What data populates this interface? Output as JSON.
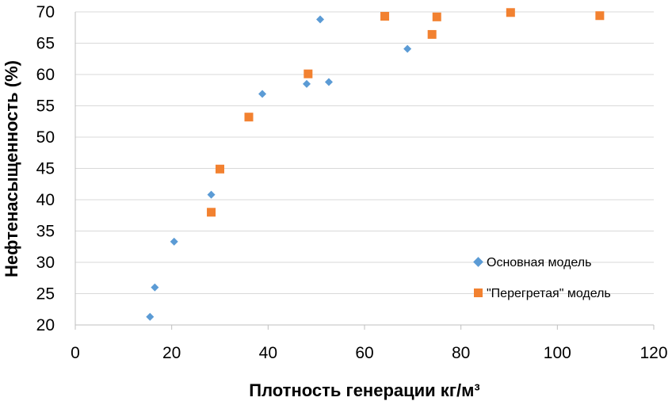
{
  "chart_data": {
    "type": "scatter",
    "title": "",
    "xlabel": "Плотность генерации кг/м³",
    "ylabel": "Нефтенасыщенность (%)",
    "xlim": [
      0,
      120
    ],
    "ylim": [
      20,
      70
    ],
    "x_ticks": [
      0,
      20,
      40,
      60,
      80,
      100,
      120
    ],
    "y_ticks": [
      20,
      25,
      30,
      35,
      40,
      45,
      50,
      55,
      60,
      65,
      70
    ],
    "x_tick_labels": [
      "0",
      "20",
      "40",
      "60",
      "80",
      "100",
      "120"
    ],
    "y_tick_labels": [
      "20",
      "25",
      "30",
      "35",
      "40",
      "45",
      "50",
      "55",
      "60",
      "65",
      "70"
    ],
    "grid": "horizontal",
    "legend_position": "right-bottom",
    "series": [
      {
        "name": "Основная модель",
        "marker": "diamond",
        "color": "#5b9bd5",
        "x": [
          15.5,
          16.5,
          20.5,
          28.2,
          38.8,
          48.0,
          50.8,
          52.6,
          68.9
        ],
        "y": [
          21.3,
          26.0,
          33.3,
          40.8,
          56.9,
          58.5,
          68.8,
          58.8,
          64.1
        ]
      },
      {
        "name": "\"Перегретая\" модель",
        "marker": "square",
        "color": "#f28130",
        "x": [
          28.2,
          30.0,
          36.0,
          48.3,
          64.2,
          74.0,
          75.0,
          90.3,
          108.8
        ],
        "y": [
          38.0,
          44.9,
          53.2,
          60.1,
          69.3,
          66.4,
          69.2,
          69.9,
          69.4
        ]
      }
    ]
  }
}
